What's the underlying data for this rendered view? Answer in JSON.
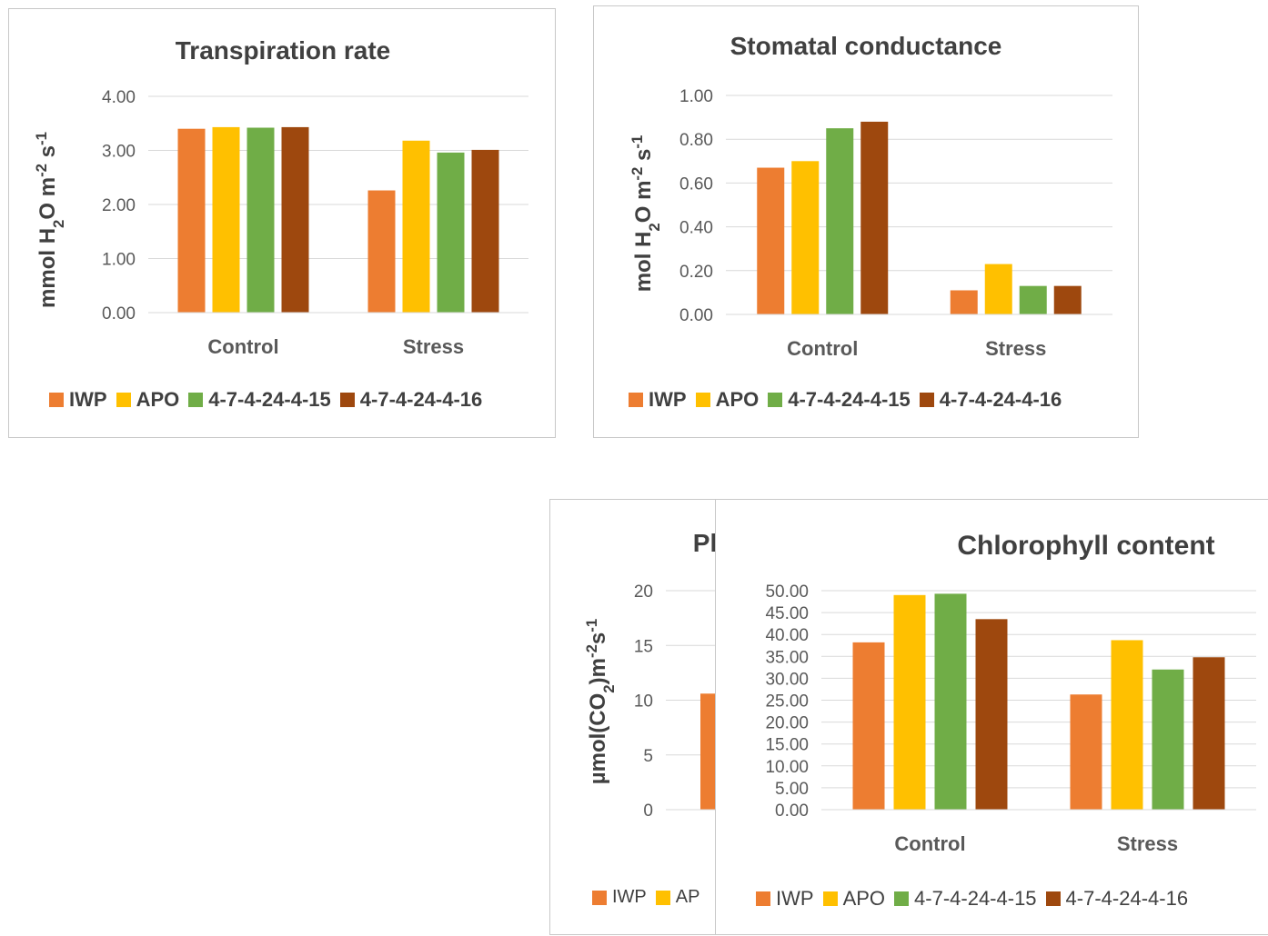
{
  "chart_data": [
    {
      "type": "bar",
      "title": "Transpiration rate",
      "ylabel": "mmol H2O m-2 s-1",
      "categories": [
        "Control",
        "Stress"
      ],
      "ylim": [
        0,
        4
      ],
      "yticks": [
        "0.00",
        "1.00",
        "2.00",
        "3.00",
        "4.00"
      ],
      "grid": true,
      "legend": "bottom",
      "series": [
        {
          "name": "IWP",
          "color": "#ED7D31",
          "values": [
            3.4,
            2.26
          ]
        },
        {
          "name": "APO",
          "color": "#FFC000",
          "values": [
            3.43,
            3.18
          ]
        },
        {
          "name": "4-7-4-24-4-15",
          "color": "#70AD47",
          "values": [
            3.42,
            2.96
          ]
        },
        {
          "name": "4-7-4-24-4-16",
          "color": "#9E480E",
          "values": [
            3.43,
            3.01
          ]
        }
      ]
    },
    {
      "type": "bar",
      "title": "Stomatal conductance",
      "ylabel": "mol H2O m-2 s-1",
      "categories": [
        "Control",
        "Stress"
      ],
      "ylim": [
        0,
        1
      ],
      "yticks": [
        "0.00",
        "0.20",
        "0.40",
        "0.60",
        "0.80",
        "1.00"
      ],
      "grid": true,
      "legend": "bottom",
      "series": [
        {
          "name": "IWP",
          "color": "#ED7D31",
          "values": [
            0.67,
            0.11
          ]
        },
        {
          "name": "APO",
          "color": "#FFC000",
          "values": [
            0.7,
            0.23
          ]
        },
        {
          "name": "4-7-4-24-4-15",
          "color": "#70AD47",
          "values": [
            0.85,
            0.13
          ]
        },
        {
          "name": "4-7-4-24-4-16",
          "color": "#9E480E",
          "values": [
            0.88,
            0.13
          ]
        }
      ]
    },
    {
      "type": "bar",
      "title": "Pl",
      "ylabel": "µmol(CO2)m-2s-1",
      "categories": [
        ""
      ],
      "ylim": [
        0,
        20
      ],
      "yticks": [
        "0",
        "5",
        "10",
        "15",
        "20"
      ],
      "grid": true,
      "legend": "bottom",
      "series": [
        {
          "name": "IWP",
          "color": "#ED7D31",
          "values": [
            10.6
          ]
        }
      ],
      "legend_visible": [
        {
          "name": "IWP",
          "color": "#ED7D31"
        },
        {
          "name": "AP",
          "color": "#FFC000"
        }
      ]
    },
    {
      "type": "bar",
      "title": "Chlorophyll content",
      "ylabel": "",
      "categories": [
        "Control",
        "Stress"
      ],
      "ylim": [
        0,
        50
      ],
      "yticks": [
        "0.00",
        "5.00",
        "10.00",
        "15.00",
        "20.00",
        "25.00",
        "30.00",
        "35.00",
        "40.00",
        "45.00",
        "50.00"
      ],
      "grid": true,
      "legend": "bottom",
      "series": [
        {
          "name": "IWP",
          "color": "#ED7D31",
          "values": [
            38.2,
            26.3
          ]
        },
        {
          "name": "APO",
          "color": "#FFC000",
          "values": [
            49.0,
            38.7
          ]
        },
        {
          "name": "4-7-4-24-4-15",
          "color": "#70AD47",
          "values": [
            49.3,
            32.0
          ]
        },
        {
          "name": "4-7-4-24-4-16",
          "color": "#9E480E",
          "values": [
            43.5,
            34.8
          ]
        }
      ]
    }
  ]
}
